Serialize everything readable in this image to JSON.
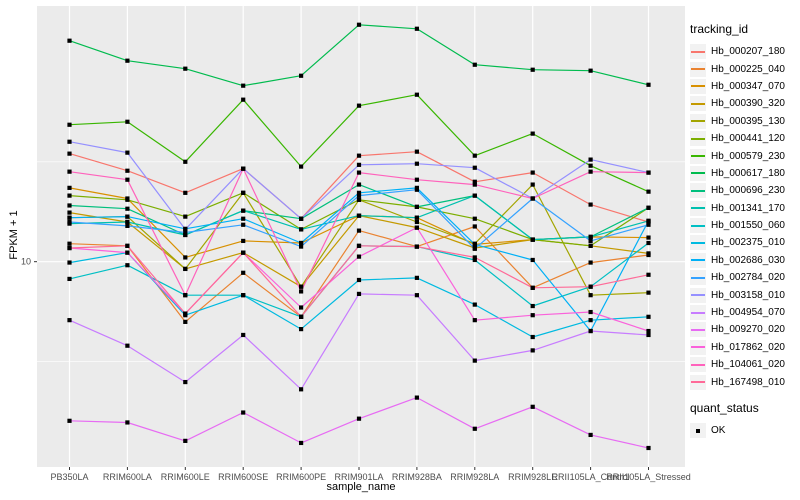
{
  "figure": {
    "y_axis_title": "FPKM + 1",
    "x_axis_title": "sample_name"
  },
  "legend": {
    "title": "tracking_id"
  },
  "legend2": {
    "title": "quant_status",
    "items": [
      {
        "label": "OK",
        "marker": "black-point"
      }
    ]
  },
  "chart_data": {
    "type": "line",
    "title": "",
    "xlabel": "sample_name",
    "ylabel": "FPKM + 1",
    "y_scale": "log10",
    "ylim": [
      0.94,
      190
    ],
    "y_ticks": [
      10
    ],
    "y_tick_labels": [
      "10"
    ],
    "y_minor_gridlines": [
      3.16,
      31.6
    ],
    "grid": true,
    "legend_position": "right",
    "legend_title": "tracking_id",
    "panel_bg": "#EBEBEB",
    "grid_color": "#FFFFFF",
    "tick_color": "#333333",
    "tick_label_color": "#4D4D4D",
    "point_color": "#000000",
    "quant_status": {
      "title": "quant_status",
      "values": [
        "OK"
      ]
    },
    "x": [
      "PB350LA",
      "RRIM600LA",
      "RRIM600LE",
      "RRIM600SE",
      "RRIM600PE",
      "RRIM901LA",
      "RRIM928BA",
      "RRIM928LA",
      "RRIM928LE",
      "RRII105LA_Control",
      "RRII105LA_Stressed"
    ],
    "series": [
      {
        "name": "Hb_000207_180",
        "color": "#F8766D",
        "values": [
          34.7,
          28.5,
          22.1,
          29.2,
          16.4,
          33.9,
          35.5,
          25.1,
          27.9,
          19.3,
          15.8
        ]
      },
      {
        "name": "Hb_000225_040",
        "color": "#EA8331",
        "values": [
          12.3,
          12.0,
          5.0,
          8.8,
          5.3,
          14.3,
          11.9,
          15.0,
          7.4,
          9.9,
          10.8
        ]
      },
      {
        "name": "Hb_000347_070",
        "color": "#D89000",
        "values": [
          23.4,
          20.7,
          10.5,
          12.7,
          12.4,
          17.0,
          16.6,
          12.2,
          12.9,
          13.3,
          13.2
        ]
      },
      {
        "name": "Hb_000390_320",
        "color": "#C49A00",
        "values": [
          17.6,
          15.8,
          9.2,
          11.1,
          7.5,
          17.0,
          14.8,
          11.7,
          12.9,
          12.0,
          11.0
        ]
      },
      {
        "name": "Hb_000395_130",
        "color": "#A3A500",
        "values": [
          16.6,
          16.8,
          9.2,
          22.1,
          7.5,
          20.4,
          15.8,
          12.3,
          24.3,
          6.8,
          7.0
        ]
      },
      {
        "name": "Hb_000441_120",
        "color": "#7CAE00",
        "values": [
          21.4,
          20.4,
          16.8,
          22.1,
          14.5,
          20.4,
          18.8,
          16.4,
          12.9,
          12.0,
          18.6
        ]
      },
      {
        "name": "Hb_000579_230",
        "color": "#39B600",
        "values": [
          48.4,
          50.1,
          31.6,
          64.6,
          29.9,
          60.3,
          68.4,
          33.9,
          43.7,
          30.2,
          22.4
        ]
      },
      {
        "name": "Hb_000617_180",
        "color": "#00BB4E",
        "values": [
          127.4,
          101.2,
          92.3,
          75.9,
          85.1,
          153.1,
          146.2,
          96.6,
          91.2,
          90.2,
          76.7
        ]
      },
      {
        "name": "Hb_000696_230",
        "color": "#00BF7D",
        "values": [
          19.1,
          18.4,
          13.6,
          18.0,
          16.4,
          24.3,
          18.8,
          21.4,
          12.9,
          13.3,
          18.6
        ]
      },
      {
        "name": "Hb_001341_170",
        "color": "#00C0AF",
        "values": [
          15.5,
          15.8,
          13.6,
          18.0,
          14.5,
          17.0,
          16.6,
          21.4,
          12.9,
          13.3,
          16.0
        ]
      },
      {
        "name": "Hb_001550_060",
        "color": "#00BFC4",
        "values": [
          8.2,
          9.6,
          6.8,
          6.8,
          5.3,
          12.0,
          11.9,
          10.2,
          6.0,
          7.5,
          12.4
        ]
      },
      {
        "name": "Hb_002375_010",
        "color": "#00BAE0",
        "values": [
          9.9,
          11.1,
          5.4,
          6.8,
          4.6,
          8.1,
          8.3,
          6.1,
          4.2,
          5.1,
          5.3
        ]
      },
      {
        "name": "Hb_002686_030",
        "color": "#00B0F6",
        "values": [
          16.6,
          16.8,
          14.6,
          16.4,
          12.4,
          22.1,
          23.4,
          12.2,
          10.2,
          4.5,
          16.0
        ]
      },
      {
        "name": "Hb_002784_020",
        "color": "#35A2FF",
        "values": [
          15.8,
          15.1,
          14.0,
          15.3,
          11.9,
          21.4,
          22.9,
          11.6,
          20.7,
          12.7,
          15.3
        ]
      },
      {
        "name": "Hb_003158_010",
        "color": "#9590FF",
        "values": [
          39.8,
          35.1,
          14.5,
          29.2,
          16.4,
          30.5,
          30.9,
          29.5,
          20.7,
          32.4,
          27.9
        ]
      },
      {
        "name": "Hb_004954_070",
        "color": "#C77CFF",
        "values": [
          5.1,
          3.8,
          2.5,
          4.3,
          2.3,
          6.9,
          6.8,
          3.2,
          3.6,
          4.5,
          4.3
        ]
      },
      {
        "name": "Hb_009270_020",
        "color": "#E76BF3",
        "values": [
          1.6,
          1.57,
          1.27,
          1.76,
          1.24,
          1.64,
          2.09,
          1.46,
          1.88,
          1.36,
          1.17
        ]
      },
      {
        "name": "Hb_017862_020",
        "color": "#FA62DB",
        "values": [
          11.7,
          11.1,
          5.5,
          11.1,
          5.9,
          10.6,
          14.8,
          5.1,
          5.4,
          5.6,
          4.5
        ]
      },
      {
        "name": "Hb_104061_020",
        "color": "#FF62BC",
        "values": [
          28.2,
          25.7,
          6.8,
          29.2,
          7.1,
          27.9,
          25.7,
          24.3,
          20.7,
          28.2,
          27.9
        ]
      },
      {
        "name": "Hb_167498_010",
        "color": "#FF6A98",
        "values": [
          11.7,
          12.0,
          5.5,
          11.1,
          5.3,
          12.0,
          11.9,
          10.5,
          7.4,
          7.5,
          8.6
        ]
      }
    ]
  }
}
